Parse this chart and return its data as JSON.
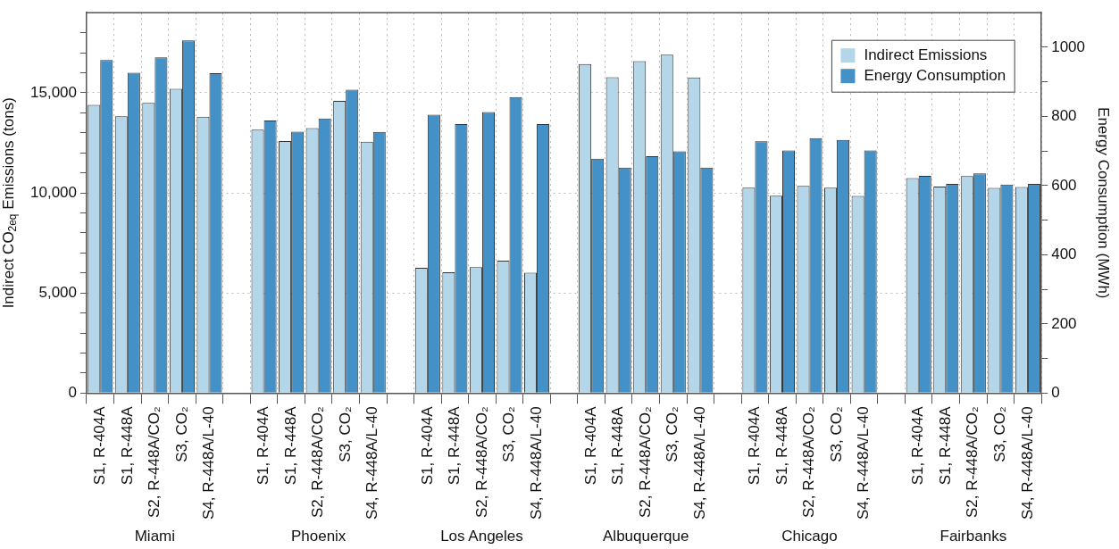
{
  "chart_data": {
    "type": "bar",
    "categories": [
      "S1, R-404A",
      "S1, R-448A",
      "S2, R-448A/CO₂",
      "S3, CO₂",
      "S4, R-448A/L-40",
      null,
      "S1, R-404A",
      "S1, R-448A",
      "S2, R-448A/CO₂",
      "S3, CO₂",
      "S4, R-448A/L-40",
      null,
      "S1, R-404A",
      "S1, R-448A",
      "S2, R-448A/CO₂",
      "S3, CO₂",
      "S4, R-448A/L-40",
      null,
      "S1, R-404A",
      "S1, R-448A",
      "S2, R-448A/CO₂",
      "S3, CO₂",
      "S4, R-448A/L-40",
      null,
      "S1, R-404A",
      "S1, R-448A",
      "S2, R-448A/CO₂",
      "S3, CO₂",
      "S4, R-448A/L-40",
      null,
      "S1, R-404A",
      "S1, R-448A",
      "S2, R-448A/CO₂",
      "S3, CO₂",
      "S4, R-448A/L-40"
    ],
    "series": [
      {
        "name": "Indirect Emissions",
        "color": "#b3d6e9",
        "values": [
          14400,
          13830,
          14490,
          15200,
          13800,
          null,
          13160,
          12590,
          13240,
          14590,
          12560,
          null,
          6260,
          6030,
          6290,
          6610,
          6010,
          null,
          16430,
          15780,
          16580,
          16900,
          15770,
          null,
          10260,
          9860,
          10350,
          10260,
          9850,
          null,
          10740,
          10320,
          10840,
          10250,
          10290
        ]
      },
      {
        "name": "Energy Consumption",
        "color": "#4391c7",
        "axis": "y2",
        "values": [
          963,
          926,
          971,
          1020,
          925,
          null,
          788,
          756,
          794,
          877,
          755,
          null,
          805,
          778,
          813,
          856,
          778,
          null,
          678,
          652,
          685,
          699,
          652,
          null,
          728,
          702,
          737,
          732,
          702,
          null,
          628,
          605,
          635,
          603,
          605
        ]
      }
    ],
    "ylabel": "Indirect CO$_{2eq}$ Emissions (tons)",
    "y2label": "Energy Consumption (MWh)",
    "ylim": [
      0,
      19000
    ],
    "yticks": [
      0,
      {
        "value": 1000,
        "label": null
      },
      {
        "value": 2000,
        "label": null
      },
      {
        "value": 3000,
        "label": null
      },
      {
        "value": 4000,
        "label": null
      },
      {
        "value": 5000,
        "label": "5,000"
      },
      {
        "value": 6000,
        "label": null
      },
      {
        "value": 7000,
        "label": null
      },
      {
        "value": 8000,
        "label": null
      },
      {
        "value": 9000,
        "label": null
      },
      {
        "value": 10000,
        "label": "10,000"
      },
      {
        "value": 11000,
        "label": null
      },
      {
        "value": 12000,
        "label": null
      },
      {
        "value": 13000,
        "label": null
      },
      {
        "value": 14000,
        "label": null
      },
      {
        "value": 15000,
        "label": "15,000"
      },
      {
        "value": 16000,
        "label": null
      },
      {
        "value": 17000,
        "label": null
      },
      {
        "value": 18000,
        "label": null
      }
    ],
    "y2lim": [
      0,
      1100
    ],
    "y2ticks": [
      0,
      {
        "value": 100,
        "label": null
      },
      200,
      {
        "value": 300,
        "label": null
      },
      400,
      {
        "value": 500,
        "label": null
      },
      600,
      {
        "value": 700,
        "label": null
      },
      800,
      {
        "value": 900,
        "label": null
      },
      1000
    ],
    "annotations": [
      "Miami",
      "Phoenix",
      "Los Angeles",
      "Albuquerque",
      "Chicago",
      "Fairbanks"
    ],
    "grid": true,
    "legend": "top right"
  }
}
